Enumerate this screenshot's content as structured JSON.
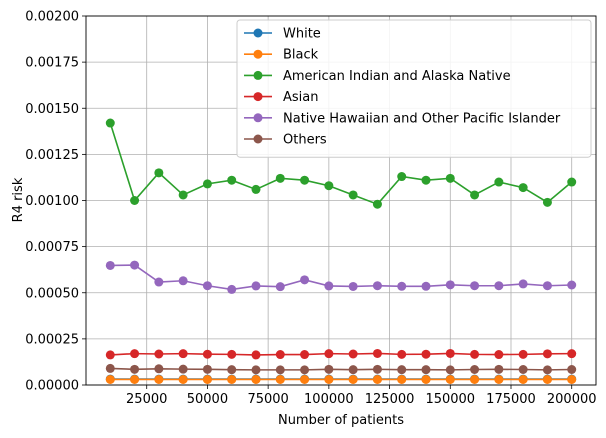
{
  "chart_data": {
    "type": "line",
    "title": "",
    "xlabel": "Number of patients",
    "ylabel": "R4 risk",
    "xlim": [
      0,
      210000
    ],
    "ylim": [
      0,
      0.002
    ],
    "x_ticks": [
      25000,
      50000,
      75000,
      100000,
      125000,
      150000,
      175000,
      200000
    ],
    "x_tick_labels": [
      "25000",
      "50000",
      "75000",
      "100000",
      "125000",
      "150000",
      "175000",
      "200000"
    ],
    "y_ticks": [
      0,
      0.00025,
      0.0005,
      0.00075,
      0.001,
      0.00125,
      0.0015,
      0.00175,
      0.002
    ],
    "y_tick_labels": [
      "0.00000",
      "0.00025",
      "0.00050",
      "0.00075",
      "0.00100",
      "0.00125",
      "0.00150",
      "0.00175",
      "0.00200"
    ],
    "grid": true,
    "legend_position": "top-right",
    "x": [
      10000,
      20000,
      30000,
      40000,
      50000,
      60000,
      70000,
      80000,
      90000,
      100000,
      110000,
      120000,
      130000,
      140000,
      150000,
      160000,
      170000,
      180000,
      190000,
      200000
    ],
    "series": [
      {
        "name": "White",
        "color": "#1f77b4",
        "values": [
          3.2e-05,
          3.2e-05,
          3.2e-05,
          3.2e-05,
          3.2e-05,
          3.2e-05,
          3.2e-05,
          3.2e-05,
          3.2e-05,
          3.2e-05,
          3.2e-05,
          3.2e-05,
          3.2e-05,
          3.2e-05,
          3.2e-05,
          3.2e-05,
          3.2e-05,
          3.2e-05,
          3.2e-05,
          3.2e-05
        ]
      },
      {
        "name": "Black",
        "color": "#ff7f0e",
        "values": [
          3e-05,
          3e-05,
          3e-05,
          3e-05,
          3e-05,
          3e-05,
          3e-05,
          3e-05,
          3e-05,
          3e-05,
          3e-05,
          3e-05,
          3e-05,
          3e-05,
          3e-05,
          3e-05,
          3e-05,
          3e-05,
          3e-05,
          3e-05
        ]
      },
      {
        "name": "American Indian and Alaska Native",
        "color": "#2ca02c",
        "values": [
          0.00142,
          0.001,
          0.00115,
          0.00103,
          0.00109,
          0.00111,
          0.00106,
          0.00112,
          0.00111,
          0.00108,
          0.00103,
          0.00098,
          0.00113,
          0.00111,
          0.00112,
          0.00103,
          0.0011,
          0.00107,
          0.00099,
          0.0011
        ]
      },
      {
        "name": "Asian",
        "color": "#d62728",
        "values": [
          0.000163,
          0.00017,
          0.000168,
          0.00017,
          0.000167,
          0.000166,
          0.000163,
          0.000165,
          0.000165,
          0.00017,
          0.000168,
          0.000171,
          0.000166,
          0.000167,
          0.000171,
          0.000166,
          0.000165,
          0.000166,
          0.000169,
          0.00017
        ]
      },
      {
        "name": "Native Hawaiian and Other Pacific Islander",
        "color": "#9467bd",
        "values": [
          0.000648,
          0.00065,
          0.000558,
          0.000565,
          0.000538,
          0.000518,
          0.000537,
          0.000533,
          0.00057,
          0.000537,
          0.000534,
          0.000538,
          0.000535,
          0.000535,
          0.000543,
          0.000538,
          0.000538,
          0.000548,
          0.000538,
          0.000542
        ]
      },
      {
        "name": "Others",
        "color": "#8c564b",
        "values": [
          9e-05,
          8.5e-05,
          8.8e-05,
          8.6e-05,
          8.5e-05,
          8.3e-05,
          8.2e-05,
          8.2e-05,
          8.2e-05,
          8.5e-05,
          8.3e-05,
          8.5e-05,
          8.3e-05,
          8.3e-05,
          8.2e-05,
          8.4e-05,
          8.5e-05,
          8.4e-05,
          8.2e-05,
          8.4e-05
        ]
      }
    ]
  }
}
